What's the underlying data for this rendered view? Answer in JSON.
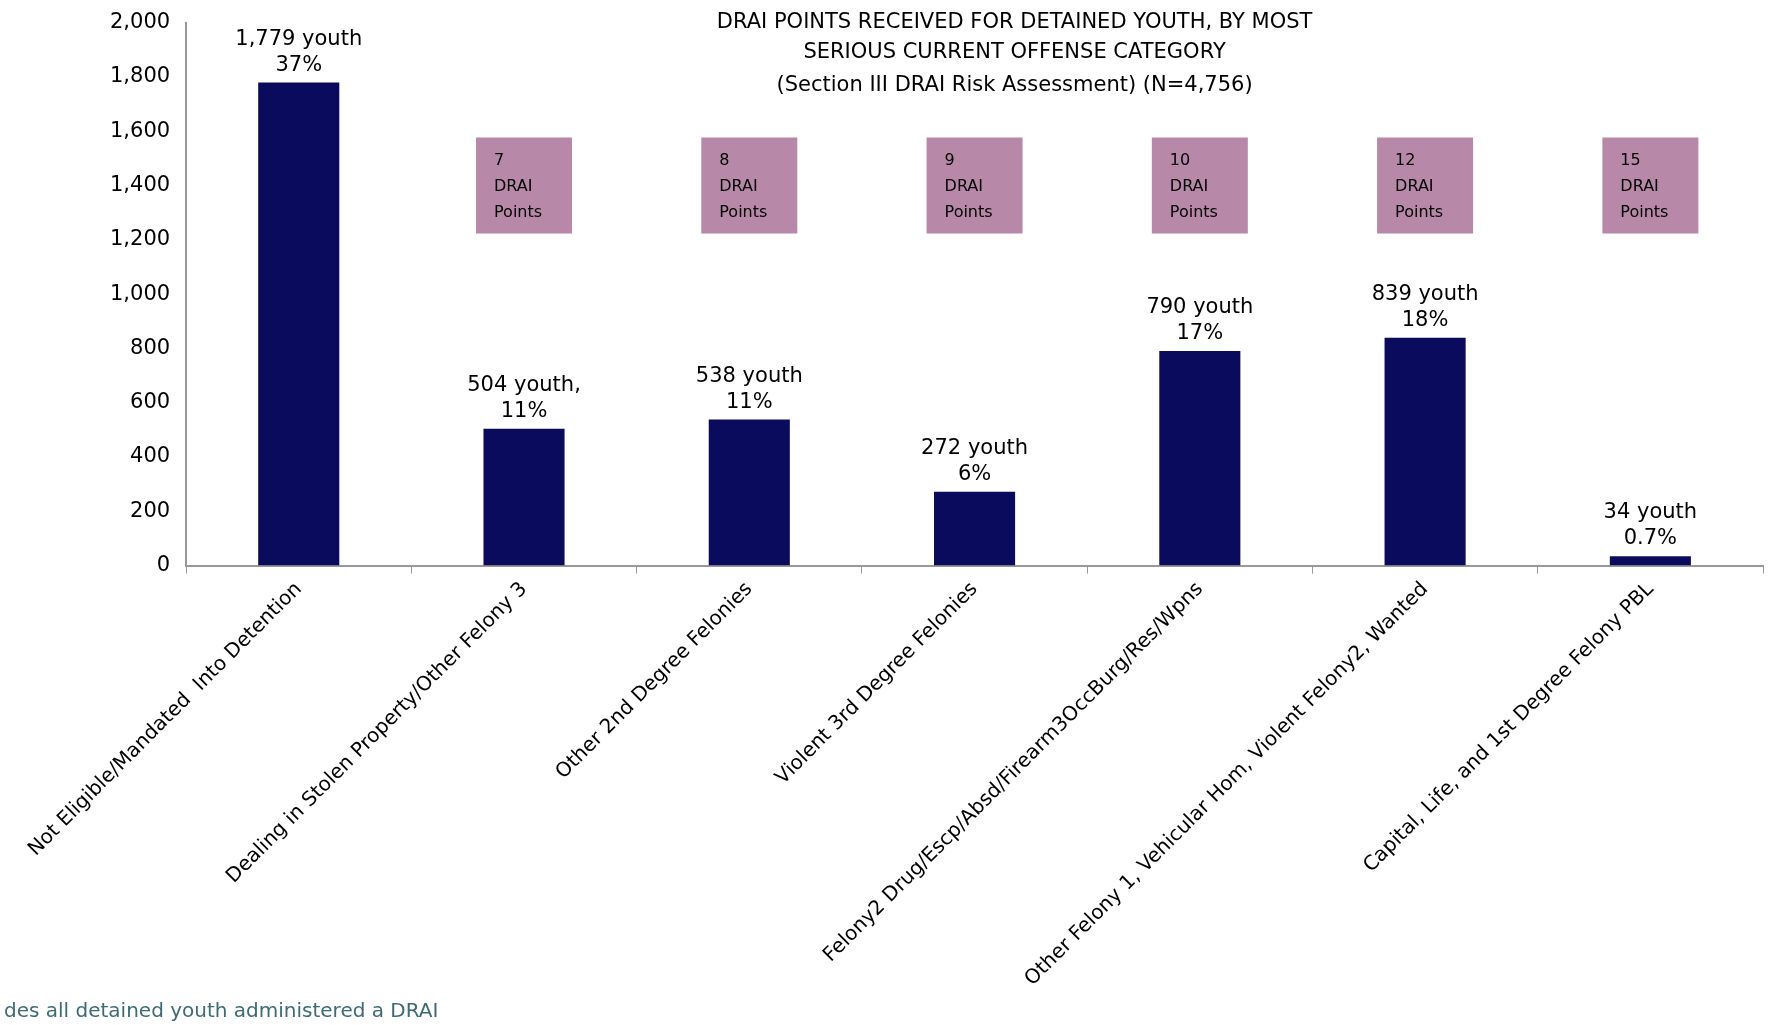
{
  "chart_data": {
    "type": "bar",
    "title": "DRAI POINTS RECEIVED FOR DETAINED YOUTH, BY MOST SERIOUS CURRENT OFFENSE CATEGORY",
    "subtitle": "(Section III DRAI Risk Assessment) (N=4,756)",
    "categories": [
      "Not Eligible/Mandated  Into Detention",
      "Dealing in Stolen Property/Other Felony 3",
      "Other 2nd Degree Felonies",
      "Violent 3rd Degree Felonies",
      "Felony2 Drug/Escp/Absd/Firearm3OccBurg/Res/Wpns",
      "Other Felony 1, Vehicular Hom, Violent Felony2, Wanted",
      "Capital, Life, and 1st Degree Felony PBL"
    ],
    "values": [
      1779,
      504,
      538,
      272,
      790,
      839,
      34
    ],
    "value_labels": [
      "1,779 youth\n37%",
      "504 youth,\n11%",
      "538 youth\n11%",
      "272 youth\n6%",
      "790 youth\n17%",
      "839 youth\n18%",
      "34 youth\n0.7%"
    ],
    "color": "#0b0b5e",
    "ylim": [
      0,
      2000
    ],
    "yticks": [
      {
        "value": 0,
        "label": "0"
      },
      {
        "value": 200,
        "label": "200"
      },
      {
        "value": 400,
        "label": "400"
      },
      {
        "value": 600,
        "label": "600"
      },
      {
        "value": 800,
        "label": "800"
      },
      {
        "value": 1000,
        "label": "1,000"
      },
      {
        "value": 1200,
        "label": "1,200"
      },
      {
        "value": 1400,
        "label": "1,400"
      },
      {
        "value": 1600,
        "label": "1,600"
      },
      {
        "value": 1800,
        "label": "1,800"
      },
      {
        "value": 2000,
        "label": "2,000"
      }
    ],
    "grid": false,
    "legend": false,
    "annotations": [
      "7\nDRAI\nPoints",
      "8\nDRAI\nPoints",
      "9\nDRAI\nPoints",
      "10\nDRAI\nPoints",
      "12\nDRAI\nPoints",
      "15\nDRAI\nPoints",
      "des all detained youth administered a DRAI"
    ]
  }
}
